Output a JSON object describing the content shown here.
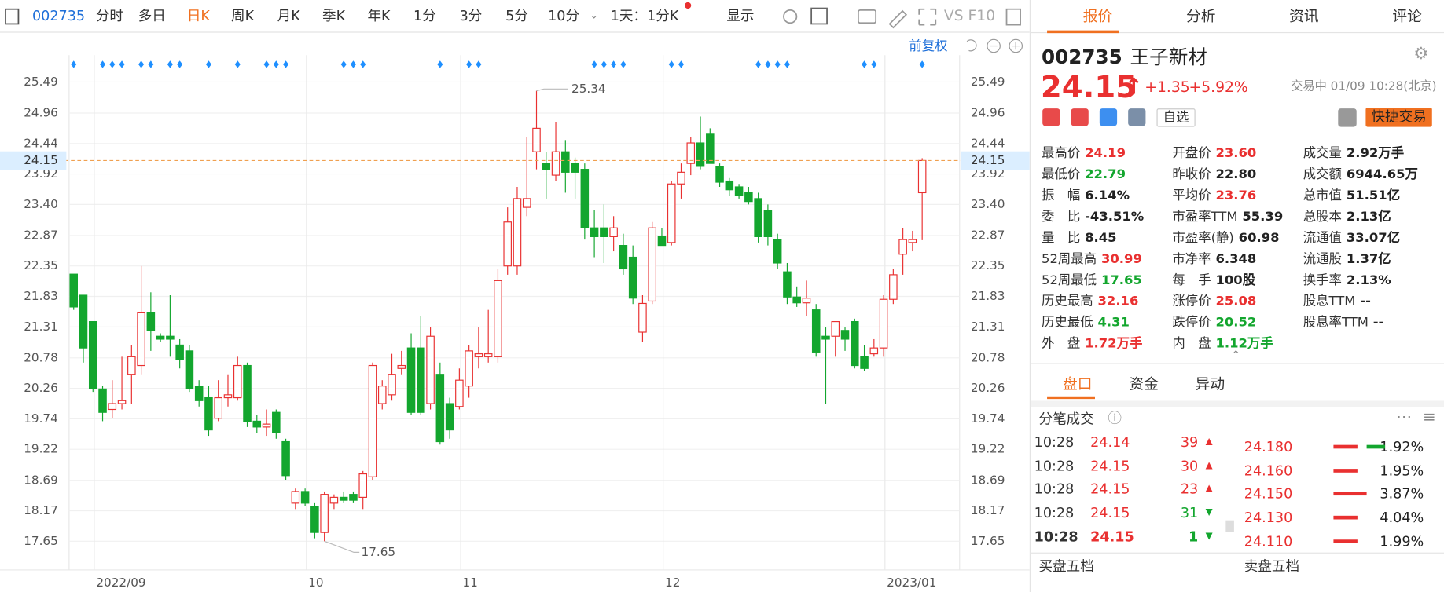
{
  "toolbar": {
    "code": "002735",
    "tabs": [
      "分时",
      "多日",
      "日K",
      "周K",
      "月K",
      "季K",
      "年K",
      "1分",
      "3分",
      "5分",
      "10分"
    ],
    "period": "1天：1分K",
    "display": "显示",
    "extra": "VS F10"
  },
  "chart_header": {
    "adjust": "前复权"
  },
  "chart_data": {
    "type": "candlestick",
    "up_color": "#e93030",
    "down_color": "#13a62e",
    "grid": true,
    "categories": [
      null,
      null,
      null,
      "2022/09",
      null,
      null,
      null,
      null,
      null,
      null,
      null,
      null,
      null,
      null,
      null,
      null,
      null,
      null,
      null,
      null,
      null,
      null,
      null,
      null,
      null,
      "10",
      null,
      null,
      null,
      null,
      null,
      null,
      null,
      null,
      null,
      null,
      null,
      null,
      null,
      null,
      null,
      "11",
      null,
      null,
      null,
      null,
      null,
      null,
      null,
      null,
      null,
      null,
      null,
      null,
      null,
      null,
      null,
      null,
      null,
      null,
      null,
      null,
      "12",
      null,
      null,
      null,
      null,
      null,
      null,
      null,
      null,
      null,
      null,
      null,
      null,
      null,
      null,
      null,
      null,
      null,
      null,
      null,
      null,
      null,
      null,
      "2023/01",
      null,
      null,
      null
    ],
    "open": [
      22.21,
      21.85,
      21.4,
      20.25,
      19.9,
      20.0,
      20.5,
      20.65,
      21.55,
      21.15,
      21.15,
      21.0,
      20.9,
      20.3,
      20.1,
      19.75,
      20.1,
      20.1,
      20.65,
      19.7,
      19.6,
      19.85,
      19.35,
      18.3,
      18.5,
      18.25,
      17.8,
      18.3,
      18.4,
      18.45,
      18.4,
      18.75,
      20.0,
      20.15,
      20.6,
      20.95,
      20.95,
      20.0,
      20.5,
      20.0,
      19.95,
      20.3,
      20.8,
      20.8,
      20.8,
      22.35,
      22.35,
      23.35,
      24.3,
      24.1,
      23.9,
      24.3,
      24.1,
      24.0,
      23.0,
      23.0,
      22.85,
      22.7,
      22.5,
      21.22,
      21.75,
      22.85,
      22.75,
      23.75,
      24.1,
      24.45,
      24.6,
      24.05,
      23.8,
      23.7,
      23.6,
      23.5,
      23.3,
      22.8,
      22.25,
      21.82,
      21.72,
      21.6,
      21.15,
      21.15,
      21.25,
      21.4,
      20.8,
      20.85,
      20.95,
      21.78,
      22.55,
      22.75,
      23.6
    ],
    "high": [
      22.21,
      21.85,
      21.4,
      20.3,
      20.4,
      20.8,
      21.0,
      22.35,
      21.9,
      21.2,
      21.85,
      21.1,
      21.0,
      20.4,
      20.3,
      20.4,
      20.5,
      20.8,
      20.7,
      19.8,
      19.9,
      19.9,
      19.4,
      18.55,
      18.55,
      18.3,
      18.5,
      18.45,
      18.5,
      18.5,
      18.85,
      20.7,
      20.4,
      20.85,
      20.9,
      21.2,
      21.5,
      21.3,
      20.7,
      20.1,
      20.6,
      21.0,
      21.3,
      21.6,
      22.3,
      23.35,
      23.7,
      24.55,
      25.34,
      24.3,
      24.8,
      24.5,
      24.2,
      24.1,
      23.3,
      23.4,
      23.2,
      22.9,
      22.7,
      21.85,
      23.1,
      23.0,
      23.8,
      24.1,
      24.55,
      24.9,
      24.7,
      24.1,
      23.85,
      23.75,
      23.7,
      23.6,
      23.4,
      22.9,
      22.4,
      22.0,
      22.1,
      21.7,
      21.3,
      21.4,
      21.3,
      21.45,
      21.0,
      21.1,
      21.85,
      22.3,
      23.0,
      22.95,
      24.19
    ],
    "low": [
      21.6,
      20.7,
      20.2,
      19.7,
      19.75,
      19.9,
      20.0,
      20.5,
      20.9,
      21.05,
      20.8,
      20.6,
      20.2,
      19.95,
      19.45,
      19.7,
      19.95,
      20.05,
      19.6,
      19.5,
      19.45,
      19.4,
      18.7,
      18.2,
      18.25,
      17.7,
      17.65,
      18.2,
      18.3,
      18.3,
      18.2,
      18.7,
      19.9,
      20.05,
      20.5,
      19.8,
      19.8,
      19.9,
      19.3,
      19.4,
      19.9,
      20.1,
      20.6,
      20.7,
      20.7,
      22.2,
      22.2,
      23.2,
      24.0,
      23.5,
      23.8,
      23.6,
      23.5,
      22.8,
      22.5,
      22.4,
      22.6,
      22.2,
      21.7,
      21.05,
      21.7,
      22.7,
      22.7,
      23.5,
      23.9,
      24.0,
      24.1,
      23.7,
      23.55,
      23.5,
      23.4,
      22.75,
      22.7,
      22.3,
      21.7,
      21.65,
      21.5,
      20.8,
      20.0,
      20.8,
      20.9,
      20.6,
      20.55,
      20.8,
      20.8,
      21.7,
      22.2,
      22.6,
      22.79
    ],
    "close": [
      21.65,
      20.95,
      20.25,
      19.85,
      20.0,
      20.05,
      20.8,
      21.55,
      21.25,
      21.1,
      21.1,
      20.75,
      20.25,
      20.05,
      19.55,
      20.1,
      20.15,
      20.65,
      19.7,
      19.6,
      19.65,
      19.5,
      18.77,
      18.5,
      18.3,
      17.8,
      18.45,
      18.4,
      18.35,
      18.35,
      18.8,
      20.65,
      20.3,
      20.5,
      20.65,
      19.85,
      19.85,
      21.15,
      19.35,
      19.55,
      20.4,
      20.9,
      20.85,
      20.85,
      22.1,
      23.1,
      23.5,
      23.5,
      24.7,
      24.0,
      24.3,
      23.95,
      23.95,
      23.0,
      22.85,
      22.85,
      23.0,
      22.3,
      21.8,
      21.71,
      23.0,
      22.7,
      23.75,
      23.95,
      24.45,
      24.05,
      24.1,
      23.78,
      23.65,
      23.55,
      23.45,
      22.85,
      22.85,
      22.4,
      21.82,
      21.72,
      21.8,
      20.88,
      21.1,
      21.4,
      21.1,
      20.65,
      20.6,
      20.95,
      21.78,
      22.2,
      22.8,
      22.8,
      24.15
    ],
    "ylim": [
      17.16,
      25.87
    ],
    "yticks": [
      17.65,
      18.17,
      18.69,
      19.22,
      19.74,
      20.26,
      20.78,
      21.31,
      21.83,
      22.35,
      22.87,
      {
        "value": 23.4,
        "label": "23.40"
      },
      23.92,
      24.44,
      24.96,
      25.49
    ],
    "max_label": 25.34,
    "min_label": 17.65,
    "last_price": 24.15,
    "last_price_color": "#f0a050"
  },
  "quote": {
    "tabs": [
      "报价",
      "分析",
      "资讯",
      "评论"
    ],
    "code": "002735",
    "name": "王子新材",
    "price": "24.15",
    "change": "+1.35",
    "change_pct": "+5.92%",
    "status": "交易中 01/09 10:28(北京)",
    "watch": "自选",
    "trade": "快捷交易",
    "stats": [
      [
        {
          "label": "最高价",
          "value": "24.19",
          "color": "#e93030"
        },
        {
          "label": "开盘价",
          "value": "23.60",
          "color": "#e93030"
        },
        {
          "label": "成交量",
          "value": "2.92万手",
          "color": "#222"
        }
      ],
      [
        {
          "label": "最低价",
          "value": "22.79",
          "color": "#13a62e"
        },
        {
          "label": "昨收价",
          "value": "22.80",
          "color": "#222"
        },
        {
          "label": "成交额",
          "value": "6944.65万",
          "color": "#222"
        }
      ],
      [
        {
          "label": "振　幅",
          "value": "6.14%",
          "color": "#222"
        },
        {
          "label": "平均价",
          "value": "23.76",
          "color": "#e93030"
        },
        {
          "label": "总市值",
          "value": "51.51亿",
          "color": "#222"
        }
      ],
      [
        {
          "label": "委　比",
          "value": "-43.51%",
          "color": "#222"
        },
        {
          "label": "市盈率TTM",
          "value": "55.39",
          "color": "#222"
        },
        {
          "label": "总股本",
          "value": "2.13亿",
          "color": "#222"
        }
      ],
      [
        {
          "label": "量　比",
          "value": "8.45",
          "color": "#222"
        },
        {
          "label": "市盈率(静)",
          "value": "60.98",
          "color": "#222"
        },
        {
          "label": "流通值",
          "value": "33.07亿",
          "color": "#222"
        }
      ],
      [
        {
          "label": "52周最高",
          "value": "30.99",
          "color": "#e93030"
        },
        {
          "label": "市净率",
          "value": "6.348",
          "color": "#222"
        },
        {
          "label": "流通股",
          "value": "1.37亿",
          "color": "#222"
        }
      ],
      [
        {
          "label": "52周最低",
          "value": "17.65",
          "color": "#13a62e"
        },
        {
          "label": "每　手",
          "value": "100股",
          "color": "#222"
        },
        {
          "label": "换手率",
          "value": "2.13%",
          "color": "#222"
        }
      ],
      [
        {
          "label": "历史最高",
          "value": "32.16",
          "color": "#e93030"
        },
        {
          "label": "涨停价",
          "value": "25.08",
          "color": "#e93030"
        },
        {
          "label": "股息TTM",
          "value": "--",
          "color": "#222"
        }
      ],
      [
        {
          "label": "历史最低",
          "value": "4.31",
          "color": "#13a62e"
        },
        {
          "label": "跌停价",
          "value": "20.52",
          "color": "#13a62e"
        },
        {
          "label": "股息率TTM",
          "value": "--",
          "color": "#222"
        }
      ],
      [
        {
          "label": "外　盘",
          "value": "1.72万手",
          "color": "#e93030"
        },
        {
          "label": "内　盘",
          "value": "1.12万手",
          "color": "#13a62e"
        }
      ]
    ]
  },
  "detail": {
    "tabs": [
      "盘口",
      "资金",
      "异动"
    ],
    "trades_title": "分笔成交",
    "trades": [
      {
        "time": "10:28",
        "price": "24.14",
        "volume": "39",
        "color": "#e93030"
      },
      {
        "time": "10:28",
        "price": "24.15",
        "volume": "30",
        "color": "#e93030"
      },
      {
        "time": "10:28",
        "price": "24.15",
        "volume": "23",
        "color": "#e93030"
      },
      {
        "time": "10:28",
        "price": "24.15",
        "volume": "31",
        "color": "#13a62e"
      },
      {
        "time": "10:28",
        "price": "24.15",
        "volume": "1",
        "color": "#13a62e"
      }
    ],
    "depth": [
      {
        "price": "24.180",
        "pct": "1.92%"
      },
      {
        "price": "24.160",
        "pct": "1.95%"
      },
      {
        "price": "24.150",
        "pct": "3.87%"
      },
      {
        "price": "24.130",
        "pct": "4.04%"
      },
      {
        "price": "24.110",
        "pct": "1.99%"
      }
    ],
    "buy_title": "买盘五档",
    "sell_title": "卖盘五档"
  }
}
